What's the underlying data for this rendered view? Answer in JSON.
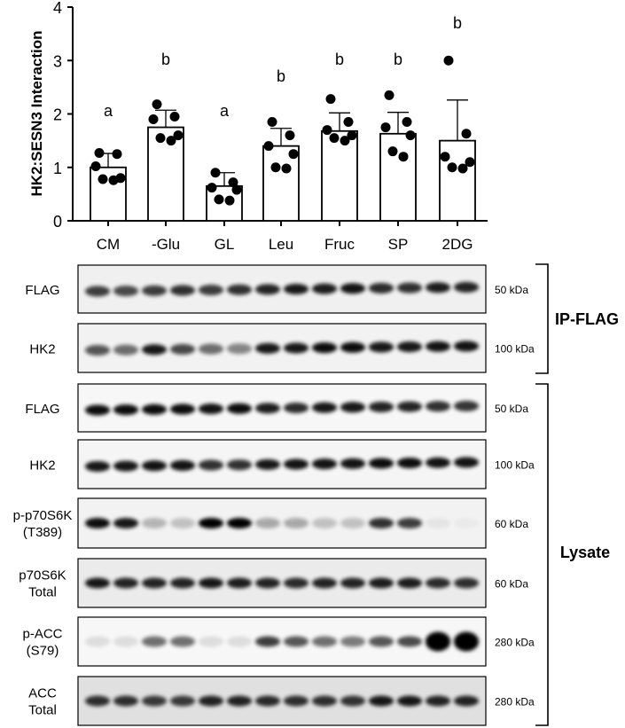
{
  "chart_data": {
    "type": "bar",
    "ylabel": "HK2:SESN3 Interaction",
    "ylim": [
      0,
      4
    ],
    "yticks": [
      "0",
      "1",
      "2",
      "3",
      "4"
    ],
    "grid": false,
    "categories": [
      "CM",
      "-Glu",
      "GL",
      "Leu",
      "Fruc",
      "SP",
      "2DG"
    ],
    "values": [
      1.0,
      1.75,
      0.65,
      1.4,
      1.68,
      1.63,
      1.5
    ],
    "errors": [
      0.26,
      0.32,
      0.25,
      0.33,
      0.34,
      0.4,
      0.76
    ],
    "sig_letters": [
      "a",
      "b",
      "a",
      "b",
      "b",
      "b",
      "b"
    ],
    "points": [
      [
        1.27,
        1.25,
        1.02,
        0.8,
        0.78,
        0.76
      ],
      [
        2.18,
        1.95,
        1.9,
        1.6,
        1.55,
        1.5
      ],
      [
        0.9,
        0.72,
        0.62,
        0.58,
        0.4,
        0.38
      ],
      [
        1.85,
        1.6,
        1.4,
        1.25,
        1.0,
        0.98
      ],
      [
        2.28,
        1.85,
        1.7,
        1.6,
        1.55,
        1.5
      ],
      [
        2.35,
        1.85,
        1.75,
        1.6,
        1.3,
        1.2
      ],
      [
        3.0,
        1.63,
        1.2,
        1.1,
        1.0,
        0.98
      ]
    ],
    "point_color": "#000000",
    "bar_color": "#ffffff"
  },
  "blots": {
    "panels": [
      {
        "label": [
          "FLAG"
        ],
        "size": "50 kDa",
        "group": 0,
        "intensities": [
          0.75,
          0.7,
          0.75,
          0.8,
          0.75,
          0.8,
          0.85,
          0.9,
          0.88,
          0.92,
          0.82,
          0.8,
          0.88,
          0.85
        ],
        "bg": 0.06
      },
      {
        "label": [
          "HK2"
        ],
        "size": "100 kDa",
        "group": 0,
        "intensities": [
          0.65,
          0.55,
          0.9,
          0.7,
          0.55,
          0.45,
          0.9,
          0.9,
          0.95,
          0.95,
          0.9,
          0.9,
          0.92,
          0.92
        ],
        "bg": 0.05
      },
      {
        "label": [
          "FLAG"
        ],
        "size": "50 kDa",
        "group": 1,
        "intensities": [
          0.95,
          0.95,
          0.95,
          0.95,
          0.92,
          0.95,
          0.88,
          0.82,
          0.9,
          0.9,
          0.85,
          0.85,
          0.8,
          0.78
        ],
        "bg": 0.03
      },
      {
        "label": [
          "HK2"
        ],
        "size": "100 kDa",
        "group": 1,
        "intensities": [
          0.9,
          0.9,
          0.92,
          0.92,
          0.8,
          0.8,
          0.9,
          0.92,
          0.92,
          0.92,
          0.95,
          0.95,
          0.92,
          0.92
        ],
        "bg": 0.04
      },
      {
        "label": [
          "p-p70S6K",
          "(T389)"
        ],
        "size": "60 kDa",
        "group": 1,
        "intensities": [
          0.95,
          0.9,
          0.25,
          0.2,
          1.0,
          1.0,
          0.3,
          0.3,
          0.2,
          0.2,
          0.8,
          0.75,
          0.05,
          0.03
        ],
        "bg": 0.05
      },
      {
        "label": [
          "p70S6K",
          "Total"
        ],
        "size": "60 kDa",
        "group": 1,
        "intensities": [
          0.9,
          0.85,
          0.85,
          0.85,
          0.9,
          0.88,
          0.85,
          0.82,
          0.85,
          0.85,
          0.88,
          0.88,
          0.82,
          0.8
        ],
        "bg": 0.08
      },
      {
        "label": [
          "p-ACC",
          "(S79)"
        ],
        "size": "280 kDa",
        "group": 1,
        "intensities": [
          0.1,
          0.1,
          0.55,
          0.55,
          0.1,
          0.1,
          0.75,
          0.65,
          0.55,
          0.5,
          0.65,
          0.7,
          1.0,
          1.0
        ],
        "bg": 0.03
      },
      {
        "label": [
          "ACC",
          "Total"
        ],
        "size": "280 kDa",
        "group": 1,
        "intensities": [
          0.8,
          0.8,
          0.75,
          0.75,
          0.85,
          0.85,
          0.82,
          0.8,
          0.8,
          0.78,
          0.9,
          0.9,
          0.85,
          0.85
        ],
        "bg": 0.12
      }
    ],
    "groups": [
      "IP-FLAG",
      "Lysate"
    ]
  }
}
